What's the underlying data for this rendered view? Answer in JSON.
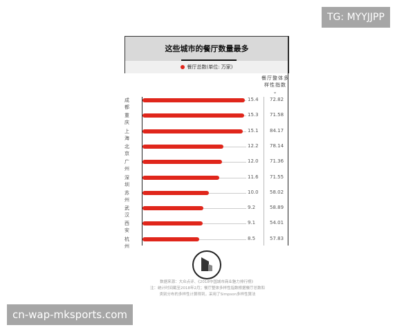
{
  "chart_data": {
    "type": "bar",
    "title": "这些城市的餐厅数量最多",
    "legend": "餐厅总数(单位: 万家)",
    "index_header": "餐厅整体多样性指数",
    "categories": [
      "成都",
      "重庆",
      "上海",
      "北京",
      "广州",
      "深圳",
      "苏州",
      "武汉",
      "西安",
      "杭州"
    ],
    "values": [
      "15.4",
      "15.3",
      "15.1",
      "12.2",
      "12.0",
      "11.6",
      "10.0",
      "9.2",
      "9.1",
      "8.5"
    ],
    "diversity_index": [
      "72.82",
      "71.58",
      "84.17",
      "78.14",
      "71.36",
      "71.55",
      "58.02",
      "58.89",
      "54.01",
      "57.83"
    ],
    "xlim": [
      0,
      15.4
    ],
    "bar_color": "#e0261b"
  },
  "footer": {
    "logo": "第一财",
    "source": "数据来源：大众点评、《2018中国城市商业魅力排行榜》",
    "note1": "注：统计时间截至2018年2月；餐厅整体多样性指数根据餐厅总数和",
    "note2": "类别分布的多样性计算得到，采用了Simpson多样性算法"
  },
  "watermarks": {
    "top": "TG: MYYJJPP",
    "bottom": "cn-wap-mksports.com"
  }
}
